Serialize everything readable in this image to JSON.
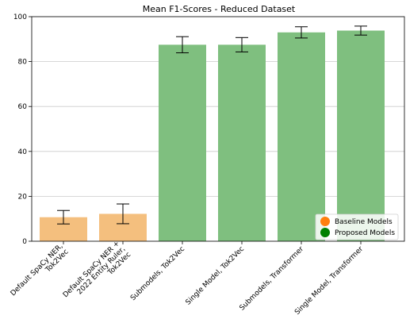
{
  "chart_data": {
    "type": "bar",
    "title": "Mean F1-Scores - Reduced Dataset",
    "xlabel": "",
    "ylabel": "",
    "ylim": [
      0,
      100
    ],
    "yticks": [
      0,
      20,
      40,
      60,
      80,
      100
    ],
    "grid": "horizontal",
    "categories": [
      [
        "Default SpaCy NER,",
        "Tok2Vec"
      ],
      [
        "Default SpaCy NER +",
        "2022 Entity Ruler,",
        "Tok2Vec"
      ],
      [
        "Submodels, Tok2Vec"
      ],
      [
        "Single Model, Tok2Vec"
      ],
      [
        "Submodels, Transformer"
      ],
      [
        "Single Model, Transformer"
      ]
    ],
    "values": [
      10.7,
      12.2,
      87.5,
      87.5,
      93.0,
      93.8
    ],
    "error": [
      3.0,
      4.4,
      3.6,
      3.2,
      2.5,
      2.0
    ],
    "groups": [
      "baseline",
      "baseline",
      "proposed",
      "proposed",
      "proposed",
      "proposed"
    ],
    "colors": {
      "baseline_bar": "#f4bf7e",
      "proposed_bar": "#7fbf7f",
      "baseline_marker": "#ff7f0e",
      "proposed_marker": "#008000",
      "grid": "#cccccc",
      "axis": "#000000"
    },
    "legend": {
      "placement": "bottom-right",
      "entries": [
        {
          "label": "Baseline Models",
          "group": "baseline"
        },
        {
          "label": "Proposed Models",
          "group": "proposed"
        }
      ]
    }
  }
}
